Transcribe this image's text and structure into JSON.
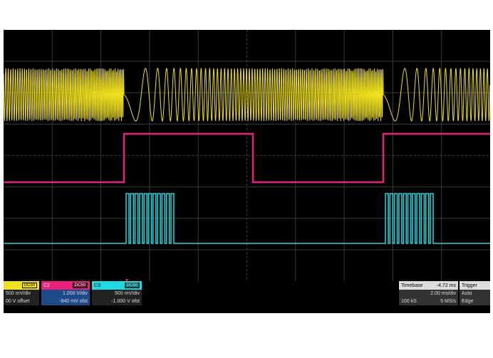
{
  "channels": [
    {
      "name": "C1",
      "coupling": "DC50",
      "scale": "500 mV/div",
      "offset": "00 V offset",
      "color": "#f0e020"
    },
    {
      "name": "C2",
      "coupling": "DC50",
      "scale": "1.000 V/div",
      "offset": "-840 mV ofst",
      "color": "#e8207a"
    },
    {
      "name": "C3",
      "coupling": "DC50",
      "scale": "500 mV/div",
      "offset": "-1.000 V ofst",
      "color": "#20d8e0"
    }
  ],
  "timebase": {
    "label": "Timebase",
    "delay": "-4.72 ms",
    "scale": "2.00 ms/div",
    "samples": "100 kS",
    "rate": "5 MS/s"
  },
  "trigger": {
    "label": "Trigger",
    "mode": "Auto",
    "type": "Edge"
  },
  "colors": {
    "screen": "#000000",
    "grid": "#3a3a3a"
  }
}
